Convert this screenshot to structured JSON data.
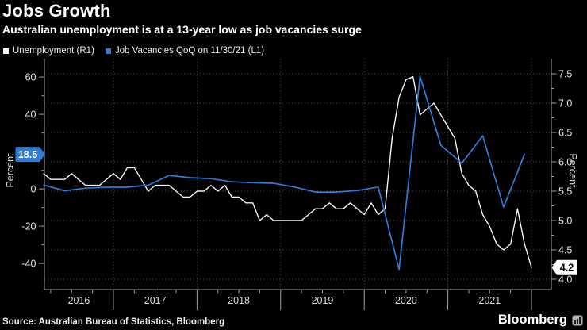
{
  "title": "Jobs Growth",
  "subtitle": "Australian unemployment is at a 13-year low as job vacancies surge",
  "legend": [
    {
      "label": "Unemployment (R1)",
      "color": "#f5f5f5"
    },
    {
      "label": "Job Vacancies QoQ on 11/30/21 (L1)",
      "color": "#2e7bd8"
    }
  ],
  "source": "Source: Australian Bureau of Statistics, Bloomberg",
  "brand": "Bloomberg",
  "colors": {
    "background": "#000000",
    "accent_blue": "#2e7bd8",
    "line_white": "#f5f5f5",
    "grid": "#565656",
    "axis": "#a2a2a2",
    "tick_label": "#e4e4e4",
    "year_label": "#d9d9d9"
  },
  "chart_data": {
    "type": "line",
    "title": "Jobs Growth",
    "grid": "dotted",
    "x_axis": {
      "label_years": [
        "2016",
        "2017",
        "2018",
        "2019",
        "2020",
        "2021"
      ],
      "year_boundaries": [
        2017,
        2018,
        2019,
        2020,
        2021,
        2022
      ],
      "domain": [
        2016.175,
        2022.237
      ]
    },
    "left_axis": {
      "title": "Percent",
      "major_ticks": [
        60,
        40,
        20,
        0,
        -20,
        -40
      ],
      "domain": [
        -54.0,
        69.83
      ]
    },
    "right_axis": {
      "title": "Percent",
      "major_ticks": [
        7.5,
        7.0,
        6.5,
        6.0,
        5.5,
        5.0,
        4.5,
        4.0
      ],
      "domain": [
        3.824,
        7.757
      ]
    },
    "series": [
      {
        "name": "Unemployment (R1)",
        "axis": "right",
        "color": "#f5f5f5",
        "unit": "%",
        "start_period": "2016-02",
        "frequency": "monthly",
        "values": [
          5.8,
          5.7,
          5.7,
          5.7,
          5.8,
          5.7,
          5.6,
          5.6,
          5.6,
          5.7,
          5.8,
          5.7,
          5.9,
          5.9,
          5.7,
          5.5,
          5.6,
          5.6,
          5.6,
          5.5,
          5.4,
          5.4,
          5.5,
          5.5,
          5.6,
          5.5,
          5.6,
          5.4,
          5.4,
          5.3,
          5.3,
          5.0,
          5.1,
          5.0,
          5.0,
          5.0,
          5.0,
          5.0,
          5.1,
          5.2,
          5.2,
          5.3,
          5.2,
          5.2,
          5.3,
          5.2,
          5.1,
          5.3,
          5.1,
          5.2,
          6.4,
          7.1,
          7.4,
          7.45,
          6.8,
          6.9,
          7.0,
          6.8,
          6.6,
          6.4,
          5.8,
          5.6,
          5.5,
          5.1,
          4.9,
          4.6,
          4.5,
          4.6,
          5.2,
          4.6,
          4.2
        ]
      },
      {
        "name": "Job Vacancies QoQ on 11/30/21 (L1)",
        "axis": "left",
        "color": "#2e7bd8",
        "unit": "%",
        "start_period": "2016-02",
        "frequency": "quarterly",
        "values": [
          2.1,
          -1.0,
          0.4,
          0.9,
          0.9,
          2.0,
          7.2,
          6.0,
          5.5,
          3.8,
          3.3,
          3.0,
          1.0,
          -1.7,
          -1.7,
          -0.9,
          1.0,
          -43.2,
          60.4,
          23.4,
          13.7,
          28.5,
          -9.8,
          18.5
        ]
      }
    ],
    "badges": {
      "left": {
        "label": "18.5",
        "value": 18.5
      },
      "right": {
        "label": "4.2",
        "value": 4.2
      }
    }
  }
}
